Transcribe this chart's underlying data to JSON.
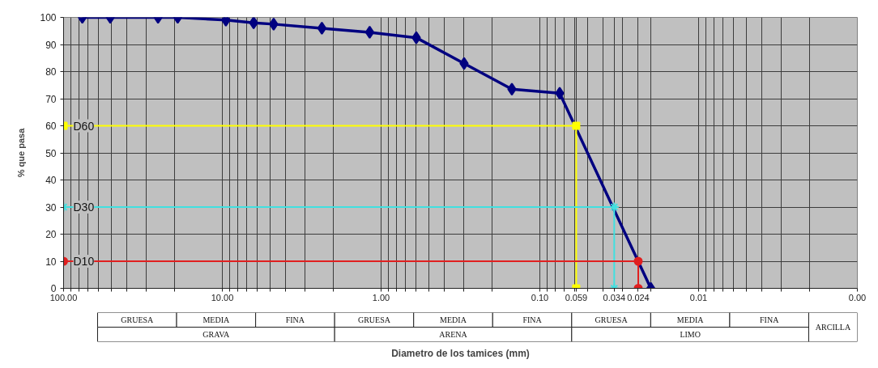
{
  "chart_data": {
    "type": "line",
    "xlabel": "Diametro de los tamices (mm)",
    "ylabel": "% que pasa",
    "log": "x",
    "xlim": [
      100,
      0.001
    ],
    "ylim": [
      0,
      100
    ],
    "xticks": [
      {
        "value": 100,
        "label": "100.00"
      },
      {
        "value": 90,
        "label": null
      },
      {
        "value": 80,
        "label": null
      },
      {
        "value": 70,
        "label": null
      },
      {
        "value": 60,
        "label": null
      },
      {
        "value": 50,
        "label": null
      },
      {
        "value": 40,
        "label": null
      },
      {
        "value": 30,
        "label": null
      },
      {
        "value": 20,
        "label": null
      },
      {
        "value": 10,
        "label": "10.00"
      },
      {
        "value": 9,
        "label": null
      },
      {
        "value": 8,
        "label": null
      },
      {
        "value": 7,
        "label": null
      },
      {
        "value": 6,
        "label": null
      },
      {
        "value": 5,
        "label": null
      },
      {
        "value": 4,
        "label": null
      },
      {
        "value": 3,
        "label": null
      },
      {
        "value": 2,
        "label": null
      },
      {
        "value": 1,
        "label": "1.00"
      },
      {
        "value": 0.9,
        "label": null
      },
      {
        "value": 0.8,
        "label": null
      },
      {
        "value": 0.7,
        "label": null
      },
      {
        "value": 0.6,
        "label": null
      },
      {
        "value": 0.5,
        "label": null
      },
      {
        "value": 0.4,
        "label": null
      },
      {
        "value": 0.3,
        "label": null
      },
      {
        "value": 0.2,
        "label": null
      },
      {
        "value": 0.1,
        "label": "0.10"
      },
      {
        "value": 0.09,
        "label": null
      },
      {
        "value": 0.08,
        "label": null
      },
      {
        "value": 0.07,
        "label": null
      },
      {
        "value": 0.06,
        "label": null
      },
      0.059,
      {
        "value": 0.05,
        "label": null
      },
      {
        "value": 0.04,
        "label": null
      },
      0.034,
      {
        "value": 0.03,
        "label": null
      },
      0.024,
      {
        "value": 0.02,
        "label": null
      },
      {
        "value": 0.01,
        "label": "0.01"
      },
      {
        "value": 0.009,
        "label": null
      },
      {
        "value": 0.008,
        "label": null
      },
      {
        "value": 0.007,
        "label": null
      },
      {
        "value": 0.006,
        "label": null
      },
      {
        "value": 0.005,
        "label": null
      },
      {
        "value": 0.004,
        "label": null
      },
      {
        "value": 0.003,
        "label": null
      },
      {
        "value": 0.002,
        "label": null
      },
      {
        "value": 0.001,
        "label": "0.00"
      }
    ],
    "yticks": [
      0,
      10,
      20,
      30,
      40,
      50,
      60,
      70,
      80,
      90,
      100
    ],
    "grid": true,
    "series": [
      {
        "color": "#000080",
        "marker": "diamond",
        "x": [
          76.2,
          50.8,
          25.4,
          19.1,
          9.5,
          6.35,
          4.75,
          2.36,
          1.18,
          0.6,
          0.3,
          0.15,
          0.075,
          0.02
        ],
        "values": [
          100,
          100,
          100,
          100,
          99,
          98,
          97.5,
          96,
          94.5,
          92.5,
          83,
          73.5,
          72,
          0
        ]
      },
      {
        "name": "D60",
        "color": "#ffff00",
        "marker": "square",
        "x": [
          100,
          0.059,
          0.059
        ],
        "values": [
          60,
          60,
          0
        ]
      },
      {
        "name": "D30",
        "color": "#40e0e0",
        "marker": "cross",
        "x": [
          100,
          0.034,
          0.034
        ],
        "values": [
          30,
          30,
          0
        ]
      },
      {
        "name": "D10",
        "color": "#e02020",
        "marker": "circle",
        "x": [
          100,
          0.024,
          0.024
        ],
        "values": [
          10,
          10,
          0
        ]
      }
    ],
    "annotations": [
      "GRUESA",
      "MEDIA",
      "FINA",
      "GRUESA",
      "MEDIA",
      "FINA",
      "GRUESA",
      "MEDIA",
      "FINA",
      "GRAVA",
      "ARENA",
      "LIMO",
      "ARCILLA"
    ]
  }
}
